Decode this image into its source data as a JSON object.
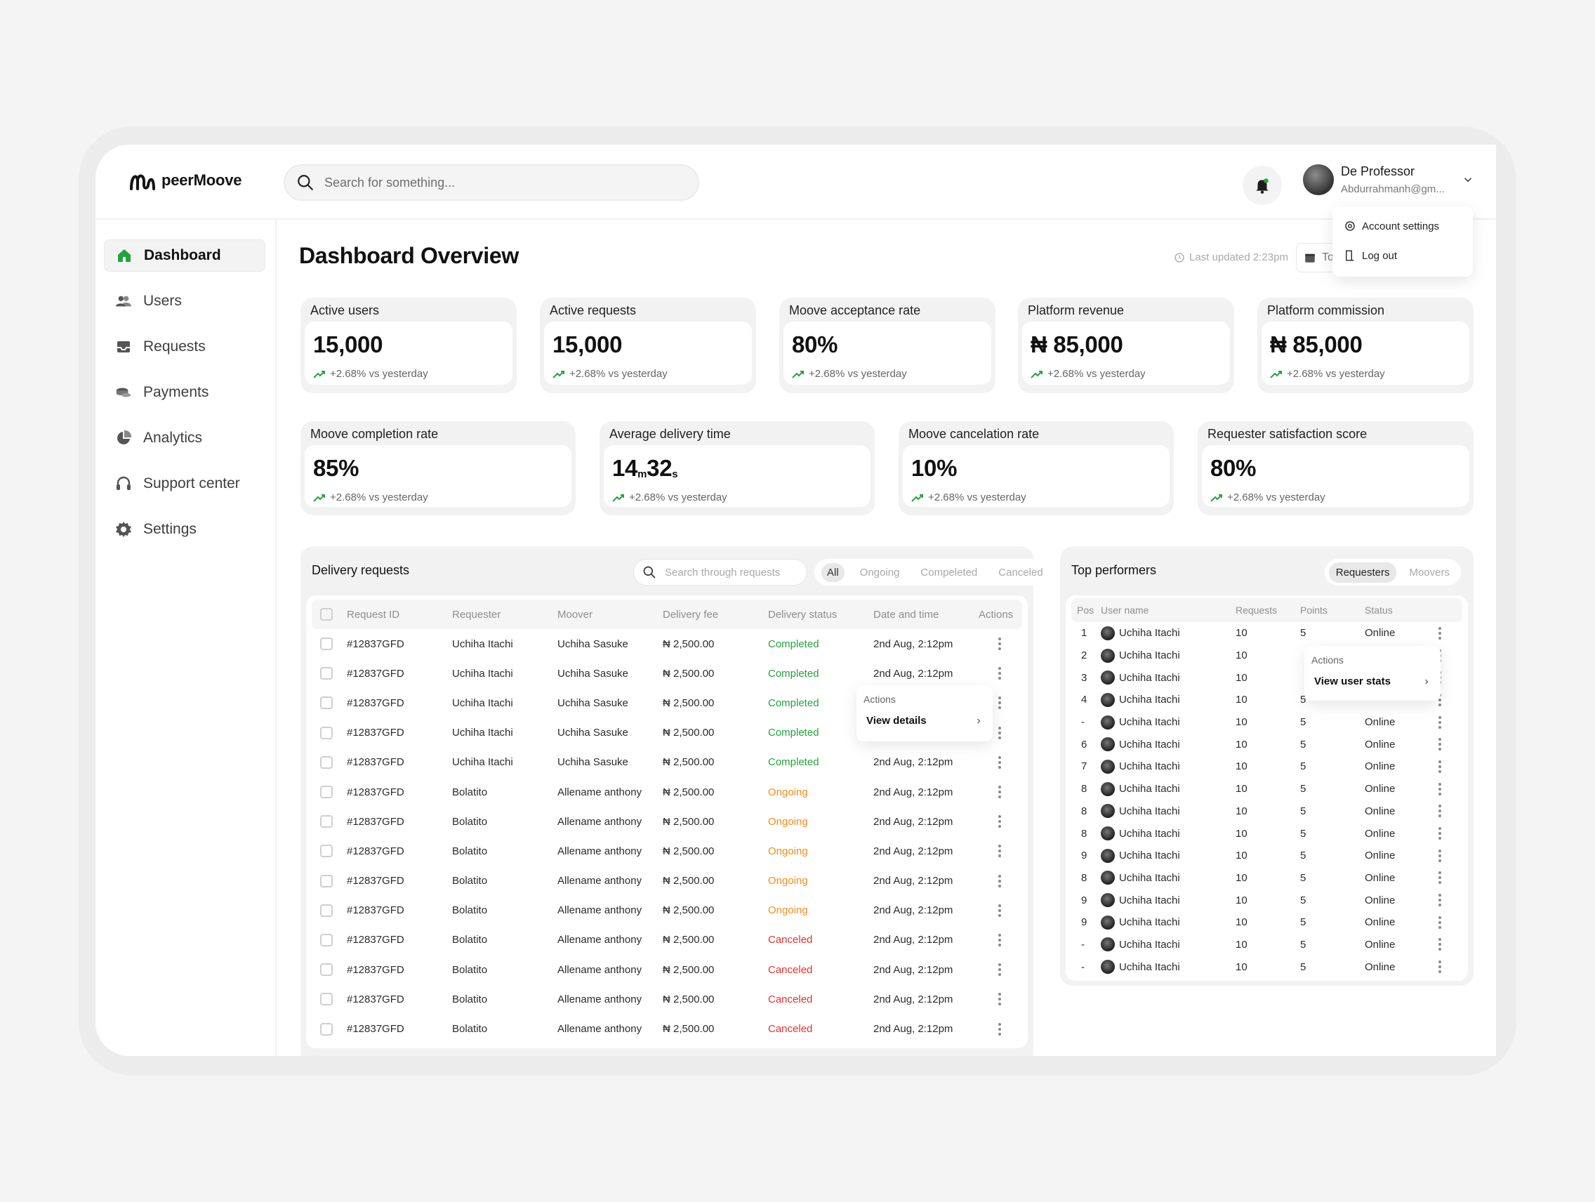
{
  "brand": {
    "name": "peerMoove",
    "logo_icon": "peermoove-logo",
    "accent": "#21a53a"
  },
  "header": {
    "search_placeholder": "Search for something...",
    "notification_icon": "bell-icon",
    "user": {
      "name": "De Professor",
      "email": "Abdurrahmanh@gm..."
    }
  },
  "profile_menu": {
    "items": [
      {
        "label": "Account settings",
        "icon": "gear-icon"
      },
      {
        "label": "Log out",
        "icon": "logout-icon"
      }
    ]
  },
  "sidebar": {
    "items": [
      {
        "label": "Dashboard",
        "icon": "home-icon",
        "active": true
      },
      {
        "label": "Users",
        "icon": "users-icon"
      },
      {
        "label": "Requests",
        "icon": "inbox-icon"
      },
      {
        "label": "Payments",
        "icon": "coins-icon"
      },
      {
        "label": "Analytics",
        "icon": "pie-chart-icon"
      },
      {
        "label": "Support center",
        "icon": "headset-icon"
      },
      {
        "label": "Settings",
        "icon": "gear-icon"
      }
    ]
  },
  "main": {
    "title": "Dashboard Overview",
    "last_updated": "Last updated 2:23pm",
    "range_label": "To"
  },
  "stats_row1": [
    {
      "label": "Active users",
      "value": "15,000",
      "delta": "+2.68% vs yesterday"
    },
    {
      "label": "Active requests",
      "value": "15,000",
      "delta": "+2.68% vs yesterday"
    },
    {
      "label": "Moove acceptance rate",
      "value": "80%",
      "delta": "+2.68% vs yesterday"
    },
    {
      "label": "Platform revenue",
      "value": "₦ 85,000",
      "delta": "+2.68% vs yesterday"
    },
    {
      "label": "Platform commission",
      "value": "₦ 85,000",
      "delta": "+2.68% vs yesterday"
    }
  ],
  "stats_row2": [
    {
      "label": "Moove completion rate",
      "value": "85%",
      "delta": "+2.68% vs yesterday"
    },
    {
      "label": "Average delivery time",
      "value_minutes": "14",
      "unit_m": "m",
      "value_seconds": "32",
      "unit_s": "s",
      "delta": "+2.68% vs yesterday"
    },
    {
      "label": "Moove cancelation rate",
      "value": "10%",
      "delta": "+2.68% vs yesterday"
    },
    {
      "label": "Requester satisfaction score",
      "value": "80%",
      "delta": "+2.68% vs yesterday"
    }
  ],
  "delivery": {
    "title": "Delivery requests",
    "search_placeholder": "Search through requests",
    "filters": [
      "All",
      "Ongoing",
      "Compeleted",
      "Canceled"
    ],
    "active_filter": "All",
    "columns": [
      "Request ID",
      "Requester",
      "Moover",
      "Delivery fee",
      "Delivery status",
      "Date and time",
      "Actions"
    ],
    "rows": [
      {
        "id": "#12837GFD",
        "requester": "Uchiha Itachi",
        "moover": "Uchiha Sasuke",
        "fee": "₦ 2,500.00",
        "status": "Completed",
        "status_key": "completed",
        "date": "2nd Aug, 2:12pm"
      },
      {
        "id": "#12837GFD",
        "requester": "Uchiha Itachi",
        "moover": "Uchiha Sasuke",
        "fee": "₦ 2,500.00",
        "status": "Completed",
        "status_key": "completed",
        "date": "2nd Aug, 2:12pm"
      },
      {
        "id": "#12837GFD",
        "requester": "Uchiha Itachi",
        "moover": "Uchiha Sasuke",
        "fee": "₦ 2,500.00",
        "status": "Completed",
        "status_key": "completed",
        "date": ""
      },
      {
        "id": "#12837GFD",
        "requester": "Uchiha Itachi",
        "moover": "Uchiha Sasuke",
        "fee": "₦ 2,500.00",
        "status": "Completed",
        "status_key": "completed",
        "date": ""
      },
      {
        "id": "#12837GFD",
        "requester": "Uchiha Itachi",
        "moover": "Uchiha Sasuke",
        "fee": "₦ 2,500.00",
        "status": "Completed",
        "status_key": "completed",
        "date": "2nd Aug, 2:12pm"
      },
      {
        "id": "#12837GFD",
        "requester": "Bolatito",
        "moover": "Allename anthony",
        "fee": "₦ 2,500.00",
        "status": "Ongoing",
        "status_key": "ongoing",
        "date": "2nd Aug, 2:12pm"
      },
      {
        "id": "#12837GFD",
        "requester": "Bolatito",
        "moover": "Allename anthony",
        "fee": "₦ 2,500.00",
        "status": "Ongoing",
        "status_key": "ongoing",
        "date": "2nd Aug, 2:12pm"
      },
      {
        "id": "#12837GFD",
        "requester": "Bolatito",
        "moover": "Allename anthony",
        "fee": "₦ 2,500.00",
        "status": "Ongoing",
        "status_key": "ongoing",
        "date": "2nd Aug, 2:12pm"
      },
      {
        "id": "#12837GFD",
        "requester": "Bolatito",
        "moover": "Allename anthony",
        "fee": "₦ 2,500.00",
        "status": "Ongoing",
        "status_key": "ongoing",
        "date": "2nd Aug, 2:12pm"
      },
      {
        "id": "#12837GFD",
        "requester": "Bolatito",
        "moover": "Allename anthony",
        "fee": "₦ 2,500.00",
        "status": "Ongoing",
        "status_key": "ongoing",
        "date": "2nd Aug, 2:12pm"
      },
      {
        "id": "#12837GFD",
        "requester": "Bolatito",
        "moover": "Allename anthony",
        "fee": "₦ 2,500.00",
        "status": "Canceled",
        "status_key": "canceled",
        "date": "2nd Aug, 2:12pm"
      },
      {
        "id": "#12837GFD",
        "requester": "Bolatito",
        "moover": "Allename anthony",
        "fee": "₦ 2,500.00",
        "status": "Canceled",
        "status_key": "canceled",
        "date": "2nd Aug, 2:12pm"
      },
      {
        "id": "#12837GFD",
        "requester": "Bolatito",
        "moover": "Allename anthony",
        "fee": "₦ 2,500.00",
        "status": "Canceled",
        "status_key": "canceled",
        "date": "2nd Aug, 2:12pm"
      },
      {
        "id": "#12837GFD",
        "requester": "Bolatito",
        "moover": "Allename anthony",
        "fee": "₦ 2,500.00",
        "status": "Canceled",
        "status_key": "canceled",
        "date": "2nd Aug, 2:12pm"
      }
    ],
    "row_popover": {
      "title": "Actions",
      "item": "View details"
    }
  },
  "top_performers": {
    "title": "Top performers",
    "tabs": [
      "Requesters",
      "Moovers"
    ],
    "active_tab": "Requesters",
    "columns": [
      "Pos",
      "User name",
      "Requests",
      "Points",
      "Status"
    ],
    "rows": [
      {
        "pos": "1",
        "name": "Uchiha Itachi",
        "requests": "10",
        "points": "5",
        "status": "Online"
      },
      {
        "pos": "2",
        "name": "Uchiha Itachi",
        "requests": "10",
        "points": "",
        "status": ""
      },
      {
        "pos": "3",
        "name": "Uchiha Itachi",
        "requests": "10",
        "points": "",
        "status": ""
      },
      {
        "pos": "4",
        "name": "Uchiha Itachi",
        "requests": "10",
        "points": "5",
        "status": ""
      },
      {
        "pos": "-",
        "name": "Uchiha Itachi",
        "requests": "10",
        "points": "5",
        "status": "Online"
      },
      {
        "pos": "6",
        "name": "Uchiha Itachi",
        "requests": "10",
        "points": "5",
        "status": "Online"
      },
      {
        "pos": "7",
        "name": "Uchiha Itachi",
        "requests": "10",
        "points": "5",
        "status": "Online"
      },
      {
        "pos": "8",
        "name": "Uchiha Itachi",
        "requests": "10",
        "points": "5",
        "status": "Online"
      },
      {
        "pos": "8",
        "name": "Uchiha Itachi",
        "requests": "10",
        "points": "5",
        "status": "Online"
      },
      {
        "pos": "8",
        "name": "Uchiha Itachi",
        "requests": "10",
        "points": "5",
        "status": "Online"
      },
      {
        "pos": "9",
        "name": "Uchiha Itachi",
        "requests": "10",
        "points": "5",
        "status": "Online"
      },
      {
        "pos": "8",
        "name": "Uchiha Itachi",
        "requests": "10",
        "points": "5",
        "status": "Online"
      },
      {
        "pos": "9",
        "name": "Uchiha Itachi",
        "requests": "10",
        "points": "5",
        "status": "Online"
      },
      {
        "pos": "9",
        "name": "Uchiha Itachi",
        "requests": "10",
        "points": "5",
        "status": "Online"
      },
      {
        "pos": "-",
        "name": "Uchiha Itachi",
        "requests": "10",
        "points": "5",
        "status": "Online"
      },
      {
        "pos": "-",
        "name": "Uchiha Itachi",
        "requests": "10",
        "points": "5",
        "status": "Online"
      }
    ],
    "row_popover": {
      "title": "Actions",
      "item": "View user stats"
    }
  }
}
